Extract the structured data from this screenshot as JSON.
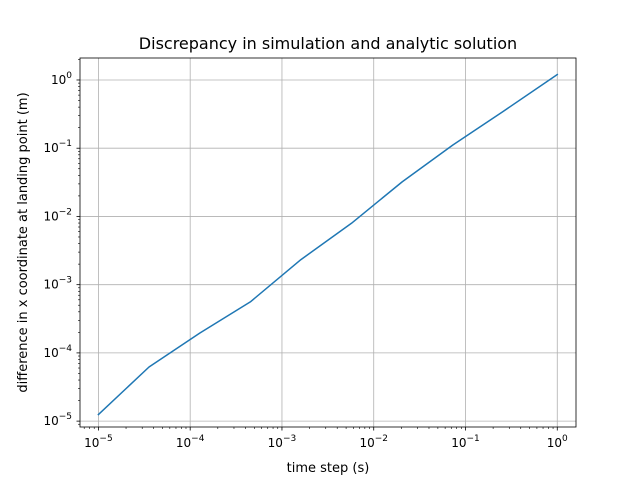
{
  "chart_data": {
    "type": "line",
    "title": "Discrepancy in simulation and analytic solution",
    "xlabel": "time step (s)",
    "ylabel": "difference in x coordinate at landing point (m)",
    "xscale": "log",
    "yscale": "log",
    "xlim": [
      6.3e-06,
      1.6
    ],
    "ylim": [
      8.2e-06,
      2.1
    ],
    "grid": true,
    "x_ticks": [
      {
        "base": "10",
        "exp": "−5",
        "value": 1e-05
      },
      {
        "base": "10",
        "exp": "−4",
        "value": 0.0001
      },
      {
        "base": "10",
        "exp": "−3",
        "value": 0.001
      },
      {
        "base": "10",
        "exp": "−2",
        "value": 0.01
      },
      {
        "base": "10",
        "exp": "−1",
        "value": 0.1
      },
      {
        "base": "10",
        "exp": "0",
        "value": 1
      }
    ],
    "y_ticks": [
      {
        "base": "10",
        "exp": "−5",
        "value": 1e-05
      },
      {
        "base": "10",
        "exp": "−4",
        "value": 0.0001
      },
      {
        "base": "10",
        "exp": "−3",
        "value": 0.001
      },
      {
        "base": "10",
        "exp": "−2",
        "value": 0.01
      },
      {
        "base": "10",
        "exp": "−1",
        "value": 0.1
      },
      {
        "base": "10",
        "exp": "0",
        "value": 1
      }
    ],
    "series": [
      {
        "color": "#1f77b4",
        "x": [
          1e-05,
          3.56e-05,
          0.000127,
          0.000452,
          0.00161,
          0.00572,
          0.0204,
          0.0725,
          0.258,
          1.0
        ],
        "y": [
          1.25e-05,
          6.21e-05,
          0.000195,
          0.000559,
          0.00233,
          0.00794,
          0.0321,
          0.111,
          0.347,
          1.2
        ]
      }
    ]
  }
}
